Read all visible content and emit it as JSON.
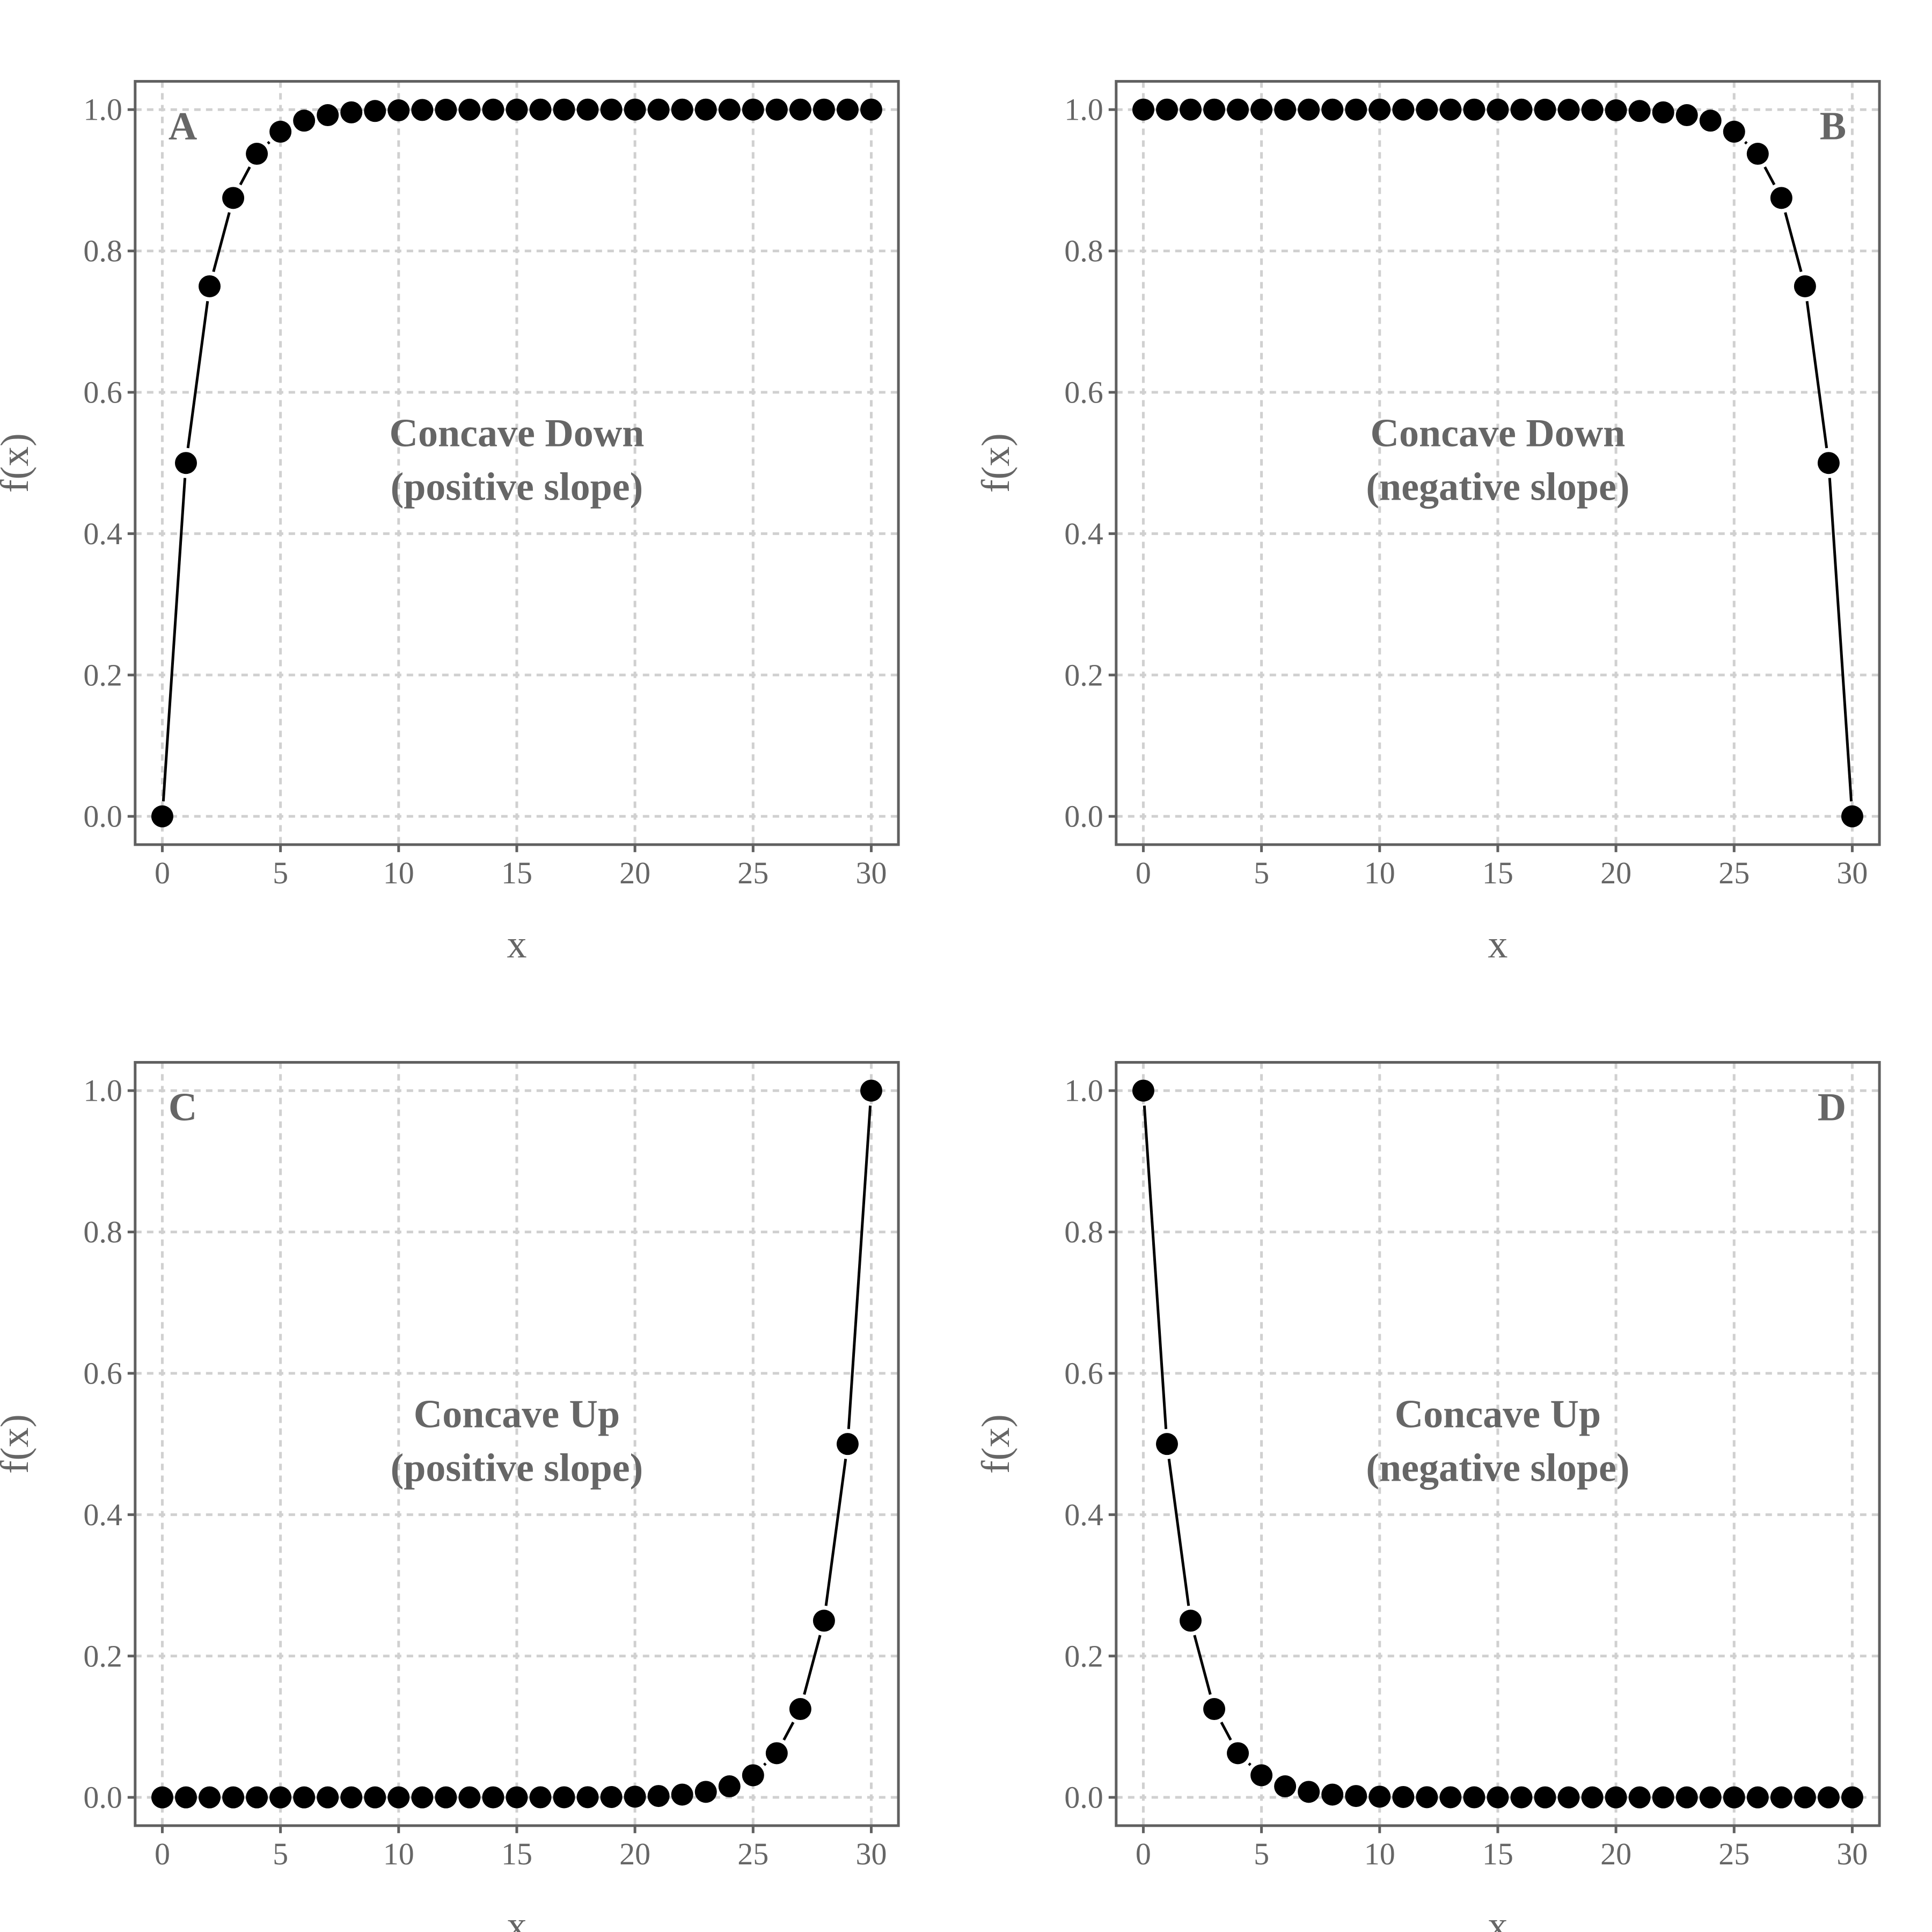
{
  "colors": {
    "text": "#666666",
    "grid": "#d0d0d0",
    "border": "#606060",
    "point": "#000000",
    "line": "#000000"
  },
  "chart_data": [
    {
      "type": "line",
      "panel_label": "A",
      "annotation": [
        "Concave Down",
        "(positive slope)"
      ],
      "xlabel": "x",
      "ylabel": "f(x)",
      "xlim": [
        -1.15,
        31.15
      ],
      "ylim": [
        -0.04,
        1.04
      ],
      "xticks": [
        0,
        5,
        10,
        15,
        20,
        25,
        30
      ],
      "yticks": [
        0.0,
        0.2,
        0.4,
        0.6,
        0.8,
        1.0
      ],
      "xtick_labels": [
        "0",
        "5",
        "10",
        "15",
        "20",
        "25",
        "30"
      ],
      "ytick_labels": [
        "0.0",
        "0.2",
        "0.4",
        "0.6",
        "0.8",
        "1.0"
      ],
      "grid": true,
      "x": [
        0,
        1,
        2,
        3,
        4,
        5,
        6,
        7,
        8,
        9,
        10,
        11,
        12,
        13,
        14,
        15,
        16,
        17,
        18,
        19,
        20,
        21,
        22,
        23,
        24,
        25,
        26,
        27,
        28,
        29,
        30
      ],
      "y": [
        0,
        0.5,
        0.75,
        0.875,
        0.9375,
        0.96875,
        0.984375,
        0.992188,
        0.996094,
        0.998047,
        0.999023,
        0.999512,
        0.999756,
        0.999878,
        0.999939,
        0.999969,
        0.999985,
        0.999992,
        0.999996,
        0.999998,
        0.999999,
        1,
        1,
        1,
        1,
        1,
        1,
        1,
        1,
        1,
        1
      ]
    },
    {
      "type": "line",
      "panel_label": "B",
      "annotation": [
        "Concave Down",
        "(negative slope)"
      ],
      "xlabel": "x",
      "ylabel": "f(x)",
      "xlim": [
        -1.15,
        31.15
      ],
      "ylim": [
        -0.04,
        1.04
      ],
      "xticks": [
        0,
        5,
        10,
        15,
        20,
        25,
        30
      ],
      "yticks": [
        0.0,
        0.2,
        0.4,
        0.6,
        0.8,
        1.0
      ],
      "xtick_labels": [
        "0",
        "5",
        "10",
        "15",
        "20",
        "25",
        "30"
      ],
      "ytick_labels": [
        "0.0",
        "0.2",
        "0.4",
        "0.6",
        "0.8",
        "1.0"
      ],
      "grid": true,
      "x": [
        0,
        1,
        2,
        3,
        4,
        5,
        6,
        7,
        8,
        9,
        10,
        11,
        12,
        13,
        14,
        15,
        16,
        17,
        18,
        19,
        20,
        21,
        22,
        23,
        24,
        25,
        26,
        27,
        28,
        29,
        30
      ],
      "y": [
        1,
        1,
        1,
        1,
        1,
        1,
        1,
        1,
        1,
        1,
        0.999999,
        0.999998,
        0.999996,
        0.999992,
        0.999985,
        0.999969,
        0.999939,
        0.999878,
        0.999756,
        0.999512,
        0.999023,
        0.998047,
        0.996094,
        0.992188,
        0.984375,
        0.96875,
        0.9375,
        0.875,
        0.75,
        0.5,
        0
      ]
    },
    {
      "type": "line",
      "panel_label": "C",
      "annotation": [
        "Concave Up",
        "(positive slope)"
      ],
      "xlabel": "x",
      "ylabel": "f(x)",
      "xlim": [
        -1.15,
        31.15
      ],
      "ylim": [
        -0.04,
        1.04
      ],
      "xticks": [
        0,
        5,
        10,
        15,
        20,
        25,
        30
      ],
      "yticks": [
        0.0,
        0.2,
        0.4,
        0.6,
        0.8,
        1.0
      ],
      "xtick_labels": [
        "0",
        "5",
        "10",
        "15",
        "20",
        "25",
        "30"
      ],
      "ytick_labels": [
        "0.0",
        "0.2",
        "0.4",
        "0.6",
        "0.8",
        "1.0"
      ],
      "grid": true,
      "x": [
        0,
        1,
        2,
        3,
        4,
        5,
        6,
        7,
        8,
        9,
        10,
        11,
        12,
        13,
        14,
        15,
        16,
        17,
        18,
        19,
        20,
        21,
        22,
        23,
        24,
        25,
        26,
        27,
        28,
        29,
        30
      ],
      "y": [
        0,
        0,
        0,
        0,
        0,
        0,
        0,
        0,
        0,
        0,
        1e-06,
        2e-06,
        4e-06,
        8e-06,
        1.5e-05,
        3.1e-05,
        6.1e-05,
        0.000122,
        0.000244,
        0.000488,
        0.000977,
        0.001953,
        0.003906,
        0.007813,
        0.015625,
        0.03125,
        0.0625,
        0.125,
        0.25,
        0.5,
        1
      ]
    },
    {
      "type": "line",
      "panel_label": "D",
      "annotation": [
        "Concave Up",
        "(negative slope)"
      ],
      "xlabel": "x",
      "ylabel": "f(x)",
      "xlim": [
        -1.15,
        31.15
      ],
      "ylim": [
        -0.04,
        1.04
      ],
      "xticks": [
        0,
        5,
        10,
        15,
        20,
        25,
        30
      ],
      "yticks": [
        0.0,
        0.2,
        0.4,
        0.6,
        0.8,
        1.0
      ],
      "xtick_labels": [
        "0",
        "5",
        "10",
        "15",
        "20",
        "25",
        "30"
      ],
      "ytick_labels": [
        "0.0",
        "0.2",
        "0.4",
        "0.6",
        "0.8",
        "1.0"
      ],
      "grid": true,
      "x": [
        0,
        1,
        2,
        3,
        4,
        5,
        6,
        7,
        8,
        9,
        10,
        11,
        12,
        13,
        14,
        15,
        16,
        17,
        18,
        19,
        20,
        21,
        22,
        23,
        24,
        25,
        26,
        27,
        28,
        29,
        30
      ],
      "y": [
        1,
        0.5,
        0.25,
        0.125,
        0.0625,
        0.03125,
        0.015625,
        0.007813,
        0.003906,
        0.001953,
        0.000977,
        0.000488,
        0.000244,
        0.000122,
        6.1e-05,
        3.1e-05,
        1.5e-05,
        8e-06,
        4e-06,
        2e-06,
        1e-06,
        0,
        0,
        0,
        0,
        0,
        0,
        0,
        0,
        0,
        0
      ]
    }
  ]
}
